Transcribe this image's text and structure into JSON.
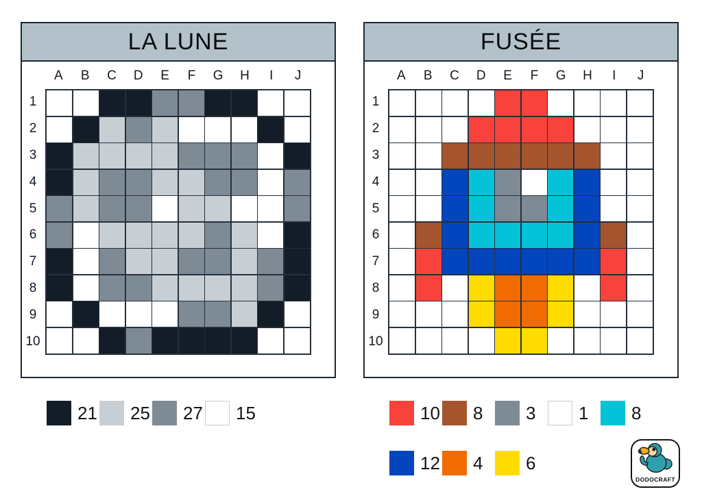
{
  "colors": {
    "title_bar": "#b3c1cb",
    "grid_line": "#25303c",
    "panel_border": "#1d2833",
    "page_bg": "#ffffff",
    "legend_white_border": "#c6cbd0"
  },
  "panels": [
    {
      "id": "la-lune",
      "title": "LA LUNE",
      "columns": [
        "A",
        "B",
        "C",
        "D",
        "E",
        "F",
        "G",
        "H",
        "I",
        "J"
      ],
      "rows": [
        "1",
        "2",
        "3",
        "4",
        "5",
        "6",
        "7",
        "8",
        "9",
        "10"
      ],
      "palette": {
        "d": "#131d28",
        "l": "#c8cfd4",
        "m": "#7e8b95",
        "w": "#ffffff"
      },
      "cells": [
        "wwddmmddww",
        "wdlmlwwwdw",
        "dllllmmmwd",
        "dlmmllmmwm",
        "mlmmwllwwm",
        "mwllllmlwd",
        "dwmllmmlmd",
        "dwmmllllmd",
        "wdwwwmmldw",
        "wwdmddddww"
      ],
      "legend": [
        {
          "name": "dark-navy",
          "color": "#131d28",
          "count": "21"
        },
        {
          "name": "light-gray",
          "color": "#c8cfd4",
          "count": "25"
        },
        {
          "name": "medium-gray",
          "color": "#7e8b95",
          "count": "27"
        },
        {
          "name": "white",
          "color": "#ffffff",
          "count": "15"
        }
      ]
    },
    {
      "id": "fusee",
      "title": "FUSÉE",
      "columns": [
        "A",
        "B",
        "C",
        "D",
        "E",
        "F",
        "G",
        "H",
        "I",
        "J"
      ],
      "rows": [
        "1",
        "2",
        "3",
        "4",
        "5",
        "6",
        "7",
        "8",
        "9",
        "10"
      ],
      "palette": {
        "w": "#ffffff",
        "r": "#f8423c",
        "b": "#a5552e",
        "g": "#7e8b95",
        "c": "#04c3d8",
        "u": "#0345bd",
        "o": "#f06c00",
        "y": "#ffdc00"
      },
      "cells": [
        "wwwwrrwwww",
        "wwwrrrrwww",
        "wwbbbbbbww",
        "wwucgwcuww",
        "wwucggcuww",
        "wbuccccubw",
        "wruuuuuurw",
        "wrwyooywrw",
        "wwwyooywww",
        "wwwwyywwww"
      ],
      "legend_rows": [
        [
          {
            "name": "red",
            "color": "#f8423c",
            "count": "10"
          },
          {
            "name": "brown",
            "color": "#a5552e",
            "count": "8"
          },
          {
            "name": "gray",
            "color": "#7e8b95",
            "count": "3"
          },
          {
            "name": "white",
            "color": "#ffffff",
            "count": "1"
          },
          {
            "name": "cyan",
            "color": "#04c3d8",
            "count": "8"
          }
        ],
        [
          {
            "name": "blue",
            "color": "#0345bd",
            "count": "12"
          },
          {
            "name": "orange",
            "color": "#f06c00",
            "count": "4"
          },
          {
            "name": "yellow",
            "color": "#ffdc00",
            "count": "6"
          }
        ]
      ]
    }
  ],
  "logo": {
    "text": "DODOCRAFT",
    "colors": {
      "body": "#2f9fac",
      "face": "#eedaa9",
      "beak": "#f0a81f",
      "beak_tip": "#1e3a5e",
      "outline": "#1a1a1a"
    }
  }
}
